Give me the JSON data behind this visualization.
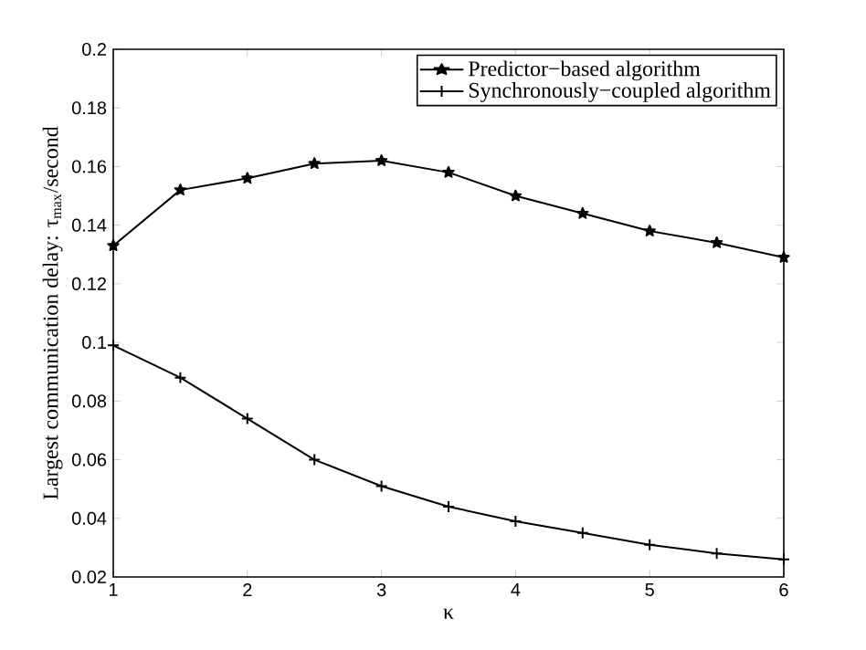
{
  "chart_data": {
    "type": "line",
    "xlabel": "κ",
    "ylabel": "Largest communication delay: τ$_{max}$/second",
    "x": [
      1,
      1.5,
      2,
      2.5,
      3,
      3.5,
      4,
      4.5,
      5,
      5.5,
      6
    ],
    "series": [
      {
        "name": "Predictor−based algorithm",
        "color": "#000000",
        "marker": "star",
        "values": [
          0.133,
          0.152,
          0.156,
          0.161,
          0.162,
          0.158,
          0.15,
          0.144,
          0.138,
          0.134,
          0.129
        ]
      },
      {
        "name": "Synchronously−coupled algorithm",
        "color": "#000000",
        "marker": "cross",
        "values": [
          0.099,
          0.088,
          0.074,
          0.06,
          0.051,
          0.044,
          0.039,
          0.035,
          0.031,
          0.028,
          0.026
        ]
      }
    ],
    "xlim": [
      1,
      6
    ],
    "xticks": [
      1,
      2,
      3,
      4,
      5,
      6
    ],
    "ylim": [
      0.02,
      0.2
    ],
    "yticks": [
      0.02,
      0.04,
      0.06,
      0.08,
      0.1,
      0.12,
      0.14,
      0.16,
      0.18,
      0.2
    ],
    "grid": false,
    "legend": "top right",
    "line_style": "solid"
  }
}
